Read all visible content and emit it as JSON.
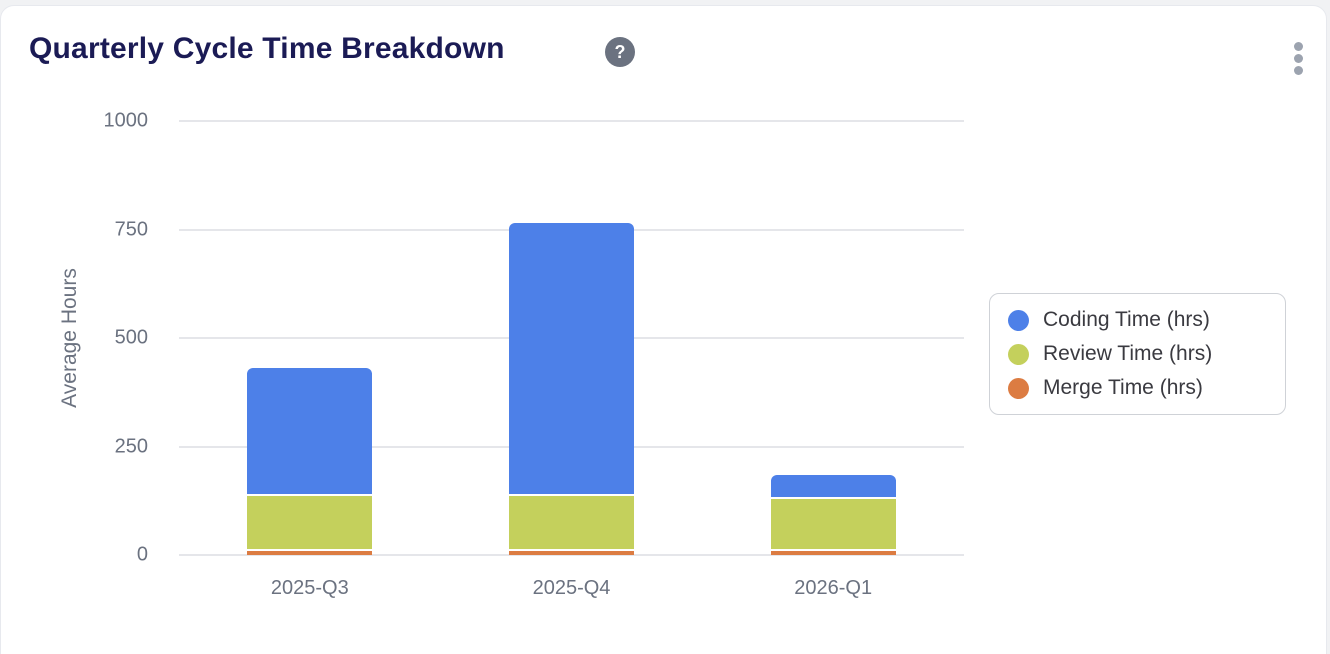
{
  "header": {
    "title": "Quarterly Cycle Time Breakdown",
    "help_glyph": "?"
  },
  "chart_data": {
    "type": "bar",
    "stacked": true,
    "title": "Quarterly Cycle Time Breakdown",
    "categories": [
      "2025-Q3",
      "2025-Q4",
      "2026-Q1"
    ],
    "series": [
      {
        "name": "Coding Time (hrs)",
        "color": "#4d80e8",
        "values": [
          295,
          630,
          55
        ]
      },
      {
        "name": "Review Time (hrs)",
        "color": "#c4d05c",
        "values": [
          125,
          125,
          120
        ]
      },
      {
        "name": "Merge Time (hrs)",
        "color": "#dc7c42",
        "values": [
          10,
          10,
          10
        ]
      }
    ],
    "stack_totals": [
      430,
      765,
      185
    ],
    "xlabel": "",
    "ylabel": "Average Hours",
    "ylim": [
      0,
      1000
    ],
    "yticks": [
      0,
      250,
      500,
      750,
      1000
    ],
    "grid": true,
    "legend_position": "right"
  },
  "colors": {
    "title": "#1b1b55",
    "axis_text": "#6b7280",
    "gridline": "#e5e6ea",
    "legend_border": "#cfd2d7",
    "legend_text": "#3a3a40",
    "help_bg": "#6b7280",
    "kebab": "#9ca3af",
    "card_bg": "#ffffff",
    "page_bg": "#f1f2f4"
  }
}
